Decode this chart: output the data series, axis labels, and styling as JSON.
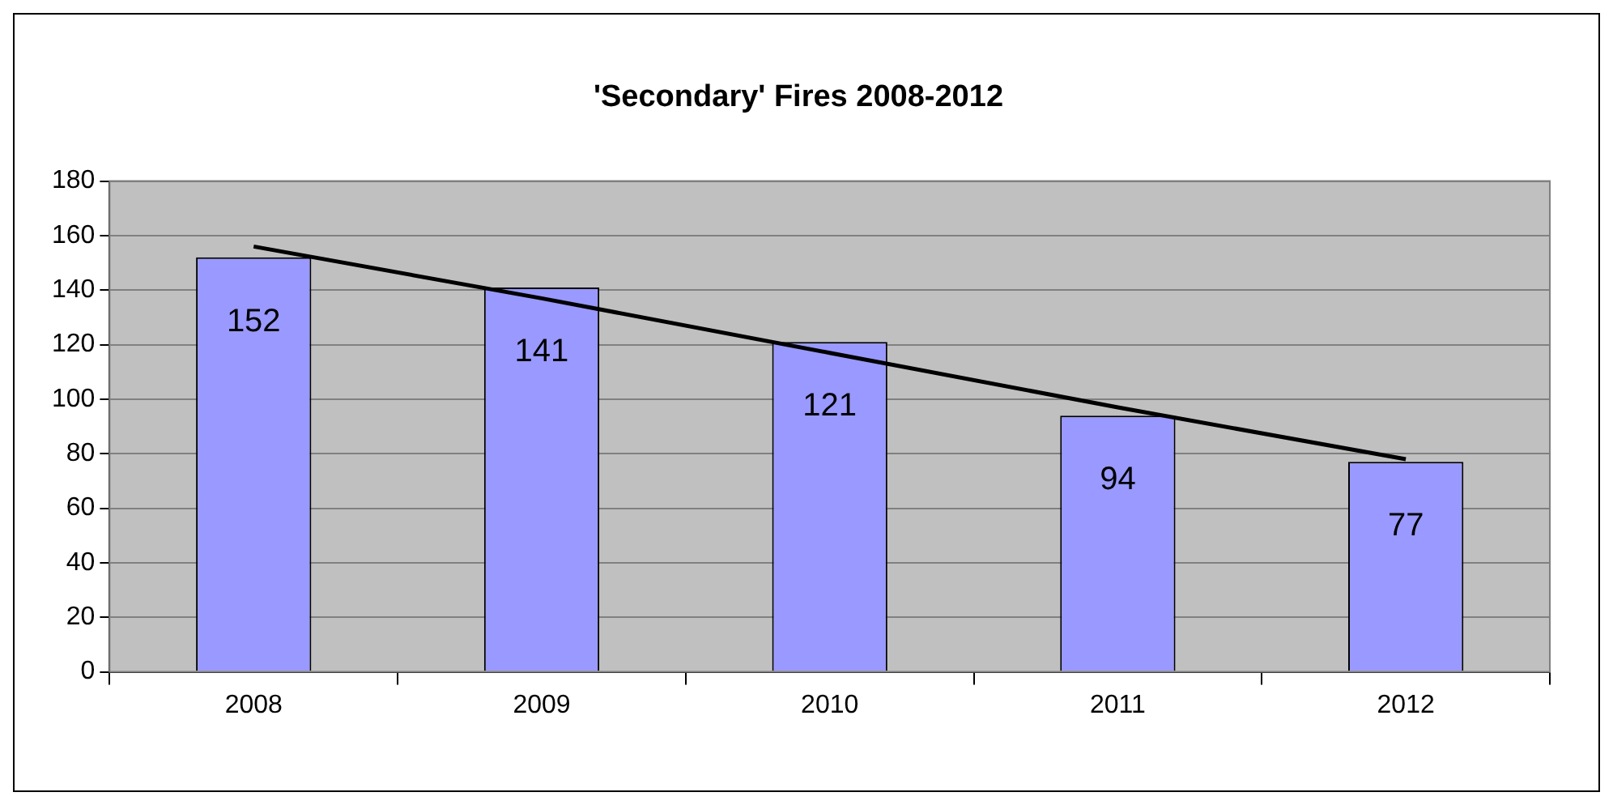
{
  "chart_data": {
    "type": "bar",
    "title": "'Secondary' Fires 2008-2012",
    "categories": [
      "2008",
      "2009",
      "2010",
      "2011",
      "2012"
    ],
    "series": [
      {
        "color": "#9999ff",
        "values": [
          152,
          141,
          121,
          94,
          77
        ],
        "value_labels": [
          "152",
          "141",
          "121",
          "94",
          "77"
        ]
      },
      {
        "type": "line",
        "color": "#000000",
        "values": [
          156,
          137,
          117,
          97,
          78
        ]
      }
    ],
    "ylim": [
      0,
      180
    ],
    "yticks": [
      0,
      20,
      40,
      60,
      80,
      100,
      120,
      140,
      160,
      180
    ],
    "grid": "y",
    "legend": false
  }
}
